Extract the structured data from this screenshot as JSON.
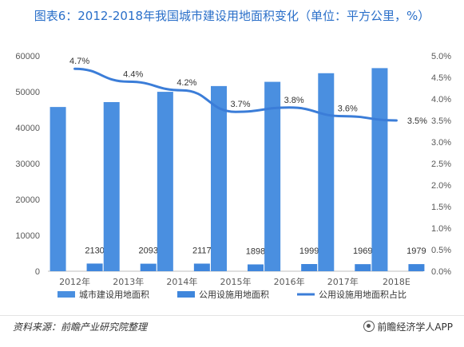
{
  "chart_data": {
    "type": "bar",
    "title": "图表6：2012-2018年我国城市建设用地面积变化（单位：平方公里，%）",
    "categories": [
      "2012年",
      "2013年",
      "2014年",
      "2015年",
      "2016年",
      "2017年",
      "2018E"
    ],
    "series": [
      {
        "name": "城市建设用地面积",
        "type": "bar",
        "axis": "left",
        "values": [
          45750,
          47110,
          49980,
          51580,
          52760,
          55160,
          56580
        ]
      },
      {
        "name": "公用设施用地面积",
        "type": "bar",
        "axis": "left",
        "values": [
          2130,
          2093,
          2117,
          1898,
          1999,
          1969,
          1979
        ],
        "labels": [
          "2130",
          "2093",
          "2117",
          "1898",
          "1999",
          "1969",
          "1979"
        ]
      },
      {
        "name": "公用设施用地面积占比",
        "type": "line",
        "axis": "right",
        "values": [
          4.7,
          4.4,
          4.2,
          3.7,
          3.8,
          3.6,
          3.5
        ],
        "labels": [
          "4.7%",
          "4.4%",
          "4.2%",
          "3.7%",
          "3.8%",
          "3.6%",
          "3.5%"
        ]
      }
    ],
    "ylim": [
      0,
      60000
    ],
    "y_ticks": [
      "0",
      "10000",
      "20000",
      "30000",
      "40000",
      "50000",
      "60000"
    ],
    "y2lim": [
      0,
      5.0
    ],
    "y2_ticks": [
      "0.0%",
      "0.5%",
      "1.0%",
      "1.5%",
      "2.0%",
      "2.5%",
      "3.0%",
      "3.5%",
      "4.0%",
      "4.5%",
      "5.0%"
    ],
    "legend_position": "bottom",
    "grid": false,
    "colors": {
      "bar_main": "#4a8fe0",
      "bar_small": "#3f86dc",
      "line": "#3b7dd8",
      "title": "#2a6fc9"
    }
  },
  "footer": {
    "source": "资料来源：前瞻产业研究院整理",
    "brand": "前瞻经济学人APP"
  }
}
